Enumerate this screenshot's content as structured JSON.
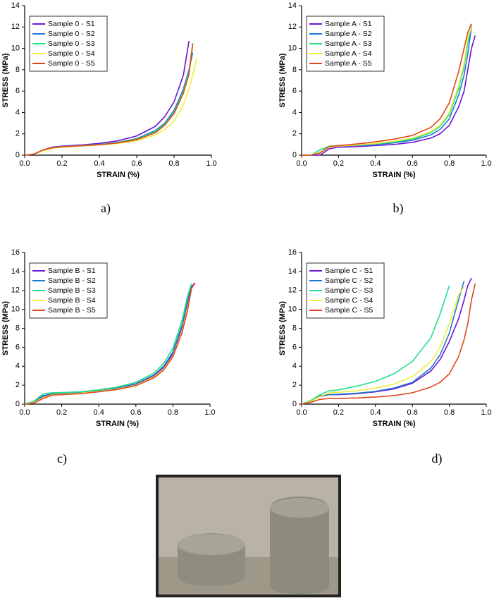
{
  "chart_data": [
    {
      "type": "line",
      "panel_label": "a)",
      "x_label": "STRAIN (%)",
      "y_label": "STRESS (MPa)",
      "x": [
        0,
        0.05,
        0.1,
        0.15,
        0.2,
        0.3,
        0.4,
        0.5,
        0.6,
        0.7,
        0.75,
        0.8,
        0.85,
        0.88,
        0.9,
        0.92,
        0.94
      ],
      "xlim": [
        0,
        1.0
      ],
      "xticks": [
        {
          "value": 0,
          "label": "0.0"
        },
        0.2,
        0.4,
        0.6,
        0.8,
        {
          "value": 1,
          "label": "1.0"
        }
      ],
      "ylim": [
        0,
        14
      ],
      "yticks": [
        0,
        2,
        4,
        6,
        8,
        10,
        12,
        14
      ],
      "series": [
        {
          "name": "Sample 0 - S1",
          "color": "#6a14d8",
          "values": [
            0,
            0.1,
            0.5,
            0.75,
            0.85,
            0.95,
            1.1,
            1.35,
            1.8,
            2.7,
            3.6,
            5.0,
            7.5,
            10.7,
            null,
            null,
            null
          ]
        },
        {
          "name": "Sample 0 - S2",
          "color": "#1f78d0",
          "values": [
            0,
            0.1,
            0.45,
            0.7,
            0.8,
            0.9,
            1.0,
            1.2,
            1.55,
            2.3,
            3.0,
            4.2,
            6.2,
            8.0,
            9.6,
            null,
            null
          ]
        },
        {
          "name": "Sample 0 - S3",
          "color": "#22e08a",
          "values": [
            0,
            0.1,
            0.45,
            0.7,
            0.8,
            0.9,
            1.0,
            1.2,
            1.5,
            2.2,
            2.9,
            4.0,
            6.0,
            7.8,
            10.5,
            null,
            null
          ]
        },
        {
          "name": "Sample 0 - S4",
          "color": "#eeee3c",
          "values": [
            0,
            0.1,
            0.4,
            0.65,
            0.75,
            0.85,
            0.95,
            1.1,
            1.35,
            1.9,
            2.4,
            3.2,
            4.7,
            6.2,
            7.5,
            9.0,
            null
          ]
        },
        {
          "name": "Sample 0 - S5",
          "color": "#e0461c",
          "values": [
            0,
            0.1,
            0.5,
            0.7,
            0.78,
            0.88,
            0.98,
            1.15,
            1.45,
            2.1,
            2.8,
            3.9,
            5.8,
            7.6,
            10.4,
            null,
            null
          ]
        }
      ]
    },
    {
      "type": "line",
      "panel_label": "b)",
      "x_label": "STRAIN (%)",
      "y_label": "STRESS (MPa)",
      "x": [
        0,
        0.05,
        0.1,
        0.15,
        0.2,
        0.3,
        0.4,
        0.5,
        0.6,
        0.7,
        0.75,
        0.8,
        0.85,
        0.88,
        0.9,
        0.92,
        0.94
      ],
      "xlim": [
        0,
        1.0
      ],
      "xticks": [
        {
          "value": 0,
          "label": "0.0"
        },
        0.2,
        0.4,
        0.6,
        0.8,
        {
          "value": 1,
          "label": "1.0"
        }
      ],
      "ylim": [
        0,
        14
      ],
      "yticks": [
        0,
        2,
        4,
        6,
        8,
        10,
        12,
        14
      ],
      "series": [
        {
          "name": "Sample A - S1",
          "color": "#6a14d8",
          "values": [
            0,
            0,
            0,
            0.6,
            0.75,
            0.8,
            0.9,
            1.0,
            1.2,
            1.6,
            2.0,
            2.8,
            4.5,
            6.0,
            8.0,
            10.0,
            11.2
          ]
        },
        {
          "name": "Sample A - S2",
          "color": "#1f78d0",
          "values": [
            0,
            0,
            0.3,
            0.8,
            0.85,
            0.9,
            1.0,
            1.15,
            1.4,
            1.9,
            2.4,
            3.4,
            5.6,
            7.5,
            9.5,
            12.0,
            null
          ]
        },
        {
          "name": "Sample A - S3",
          "color": "#22e08a",
          "values": [
            0,
            0,
            0.5,
            0.85,
            0.9,
            0.95,
            1.05,
            1.25,
            1.5,
            2.1,
            2.7,
            3.8,
            6.2,
            8.3,
            10.5,
            12.2,
            null
          ]
        },
        {
          "name": "Sample A - S4",
          "color": "#eeee3c",
          "values": [
            0,
            0,
            0.3,
            0.75,
            0.85,
            0.95,
            1.1,
            1.3,
            1.6,
            2.2,
            2.8,
            4.0,
            6.5,
            8.6,
            11.0,
            12.0,
            null
          ]
        },
        {
          "name": "Sample A - S5",
          "color": "#e0461c",
          "values": [
            0,
            0,
            0.2,
            0.8,
            0.9,
            1.05,
            1.25,
            1.5,
            1.85,
            2.6,
            3.4,
            4.9,
            7.8,
            10.0,
            11.5,
            12.3,
            null
          ]
        }
      ]
    },
    {
      "type": "line",
      "panel_label": "c)",
      "x_label": "STRAIN (%)",
      "y_label": "STRESS (MPa)",
      "x": [
        0,
        0.05,
        0.1,
        0.15,
        0.2,
        0.3,
        0.4,
        0.5,
        0.6,
        0.7,
        0.75,
        0.8,
        0.85,
        0.88,
        0.9,
        0.92,
        0.94
      ],
      "xlim": [
        0,
        1.0
      ],
      "xticks": [
        {
          "value": 0,
          "label": "0.0"
        },
        0.2,
        0.4,
        0.6,
        0.8,
        {
          "value": 1,
          "label": "1.0"
        }
      ],
      "ylim": [
        0,
        16
      ],
      "yticks": [
        0,
        2,
        4,
        6,
        8,
        10,
        12,
        14,
        16
      ],
      "series": [
        {
          "name": "Sample B - S1",
          "color": "#6a14d8",
          "values": [
            0,
            0.2,
            0.8,
            1.05,
            1.1,
            1.2,
            1.4,
            1.65,
            2.1,
            3.0,
            3.9,
            5.3,
            8.0,
            10.5,
            12.4,
            12.8,
            null
          ]
        },
        {
          "name": "Sample B - S2",
          "color": "#1f78d0",
          "values": [
            0,
            0.25,
            0.9,
            1.1,
            1.15,
            1.25,
            1.45,
            1.7,
            2.15,
            3.1,
            4.0,
            5.5,
            8.4,
            11.0,
            12.5,
            null,
            null
          ]
        },
        {
          "name": "Sample B - S3",
          "color": "#22e08a",
          "values": [
            0,
            0.3,
            1.1,
            1.2,
            1.22,
            1.3,
            1.5,
            1.8,
            2.3,
            3.3,
            4.3,
            5.9,
            8.9,
            11.5,
            12.7,
            null,
            null
          ]
        },
        {
          "name": "Sample B - S4",
          "color": "#eeee3c",
          "values": [
            0,
            0.15,
            0.7,
            1.0,
            1.05,
            1.15,
            1.35,
            1.6,
            2.0,
            2.9,
            3.7,
            5.1,
            7.8,
            10.3,
            12.0,
            null,
            null
          ]
        },
        {
          "name": "Sample B - S5",
          "color": "#e0461c",
          "values": [
            0,
            0.1,
            0.6,
            0.95,
            1.0,
            1.1,
            1.3,
            1.55,
            1.95,
            2.8,
            3.6,
            5.0,
            7.6,
            10.0,
            12.2,
            12.8,
            null
          ]
        }
      ]
    },
    {
      "type": "line",
      "panel_label": "d)",
      "x_label": "STRAIN (%)",
      "y_label": "STRESS (MPa)",
      "x": [
        0,
        0.05,
        0.1,
        0.15,
        0.2,
        0.3,
        0.4,
        0.5,
        0.6,
        0.7,
        0.75,
        0.8,
        0.85,
        0.88,
        0.9,
        0.92,
        0.94
      ],
      "xlim": [
        0,
        1.0
      ],
      "xticks": [
        {
          "value": 0,
          "label": "0.0"
        },
        0.2,
        0.4,
        0.6,
        0.8,
        {
          "value": 1,
          "label": "1.0"
        }
      ],
      "ylim": [
        0,
        16
      ],
      "yticks": [
        0,
        2,
        4,
        6,
        8,
        10,
        12,
        14,
        16
      ],
      "series": [
        {
          "name": "Sample C - S1",
          "color": "#6a14d8",
          "values": [
            0,
            0.3,
            0.8,
            1.0,
            1.0,
            1.1,
            1.3,
            1.6,
            2.2,
            3.5,
            4.7,
            6.6,
            9.0,
            11.0,
            12.5,
            13.3,
            null
          ]
        },
        {
          "name": "Sample C - S2",
          "color": "#1f78d0",
          "values": [
            0,
            0.3,
            0.9,
            1.0,
            1.05,
            1.15,
            1.35,
            1.7,
            2.3,
            3.8,
            5.2,
            7.5,
            11.0,
            13.0,
            null,
            null,
            null
          ]
        },
        {
          "name": "Sample C - S3",
          "color": "#22e08a",
          "values": [
            0,
            0.4,
            1.0,
            1.4,
            1.5,
            1.9,
            2.4,
            3.2,
            4.5,
            7.0,
            9.5,
            12.5,
            null,
            null,
            null,
            null,
            null
          ]
        },
        {
          "name": "Sample C - S4",
          "color": "#eeee3c",
          "values": [
            0,
            0.3,
            0.8,
            1.2,
            1.25,
            1.4,
            1.7,
            2.1,
            2.9,
            4.5,
            6.0,
            8.5,
            11.5,
            12.4,
            null,
            null,
            null
          ]
        },
        {
          "name": "Sample C - S5",
          "color": "#e0461c",
          "values": [
            0,
            0.2,
            0.5,
            0.6,
            0.6,
            0.65,
            0.75,
            0.9,
            1.2,
            1.8,
            2.3,
            3.2,
            5.0,
            6.8,
            8.5,
            11.0,
            12.7
          ]
        }
      ]
    }
  ]
}
